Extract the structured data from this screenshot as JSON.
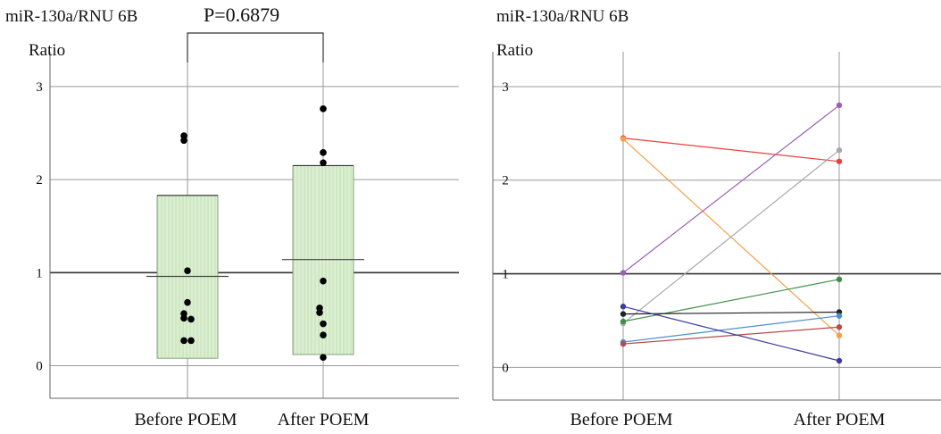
{
  "chart_data": [
    {
      "type": "box-dot",
      "title": "miR-130a/RNU 6B",
      "ylabel": "Ratio",
      "annotation": "P=0.6879",
      "categories": [
        "Before POEM",
        "After POEM"
      ],
      "yticks": [
        0,
        1,
        2,
        3
      ],
      "ylim": [
        -0.35,
        3.2
      ],
      "reference_line": 1,
      "grid": true,
      "colors": {
        "box_fill": "#dcefd2",
        "box_stripe": "#b9dca9",
        "box_edge": "#6f8f63",
        "dot": "#000000"
      },
      "groups": [
        {
          "category": "Before POEM",
          "box_low": 0.08,
          "box_high": 1.83,
          "mean": 0.96,
          "points": [
            2.47,
            2.42,
            1.02,
            0.68,
            0.56,
            0.51,
            0.5,
            0.27,
            0.27
          ]
        },
        {
          "category": "After POEM",
          "box_low": 0.12,
          "box_high": 2.15,
          "mean": 1.14,
          "points": [
            2.76,
            2.29,
            2.18,
            0.91,
            0.62,
            0.57,
            0.45,
            0.33,
            0.09
          ]
        }
      ]
    },
    {
      "type": "line",
      "title": "miR-130a/RNU 6B",
      "ylabel": "Ratio",
      "categories": [
        "Before POEM",
        "After POEM"
      ],
      "yticks": [
        0,
        1,
        2,
        3
      ],
      "ylim": [
        -0.35,
        3.2
      ],
      "reference_line": 1,
      "grid": true,
      "series": [
        {
          "color": "#e8413c",
          "values": [
            2.45,
            2.2
          ]
        },
        {
          "color": "#f5a04a",
          "values": [
            2.44,
            0.34
          ]
        },
        {
          "color": "#9c5fb5",
          "values": [
            1.01,
            2.8
          ]
        },
        {
          "color": "#a8a8a8",
          "values": [
            0.47,
            2.32
          ]
        },
        {
          "color": "#3f8f4a",
          "values": [
            0.49,
            0.94
          ]
        },
        {
          "color": "#222222",
          "values": [
            0.57,
            0.59
          ]
        },
        {
          "color": "#4a8fd0",
          "values": [
            0.27,
            0.55
          ]
        },
        {
          "color": "#b84a4a",
          "values": [
            0.25,
            0.43
          ]
        },
        {
          "color": "#3b3b9a",
          "values": [
            0.65,
            0.07
          ]
        }
      ]
    }
  ]
}
